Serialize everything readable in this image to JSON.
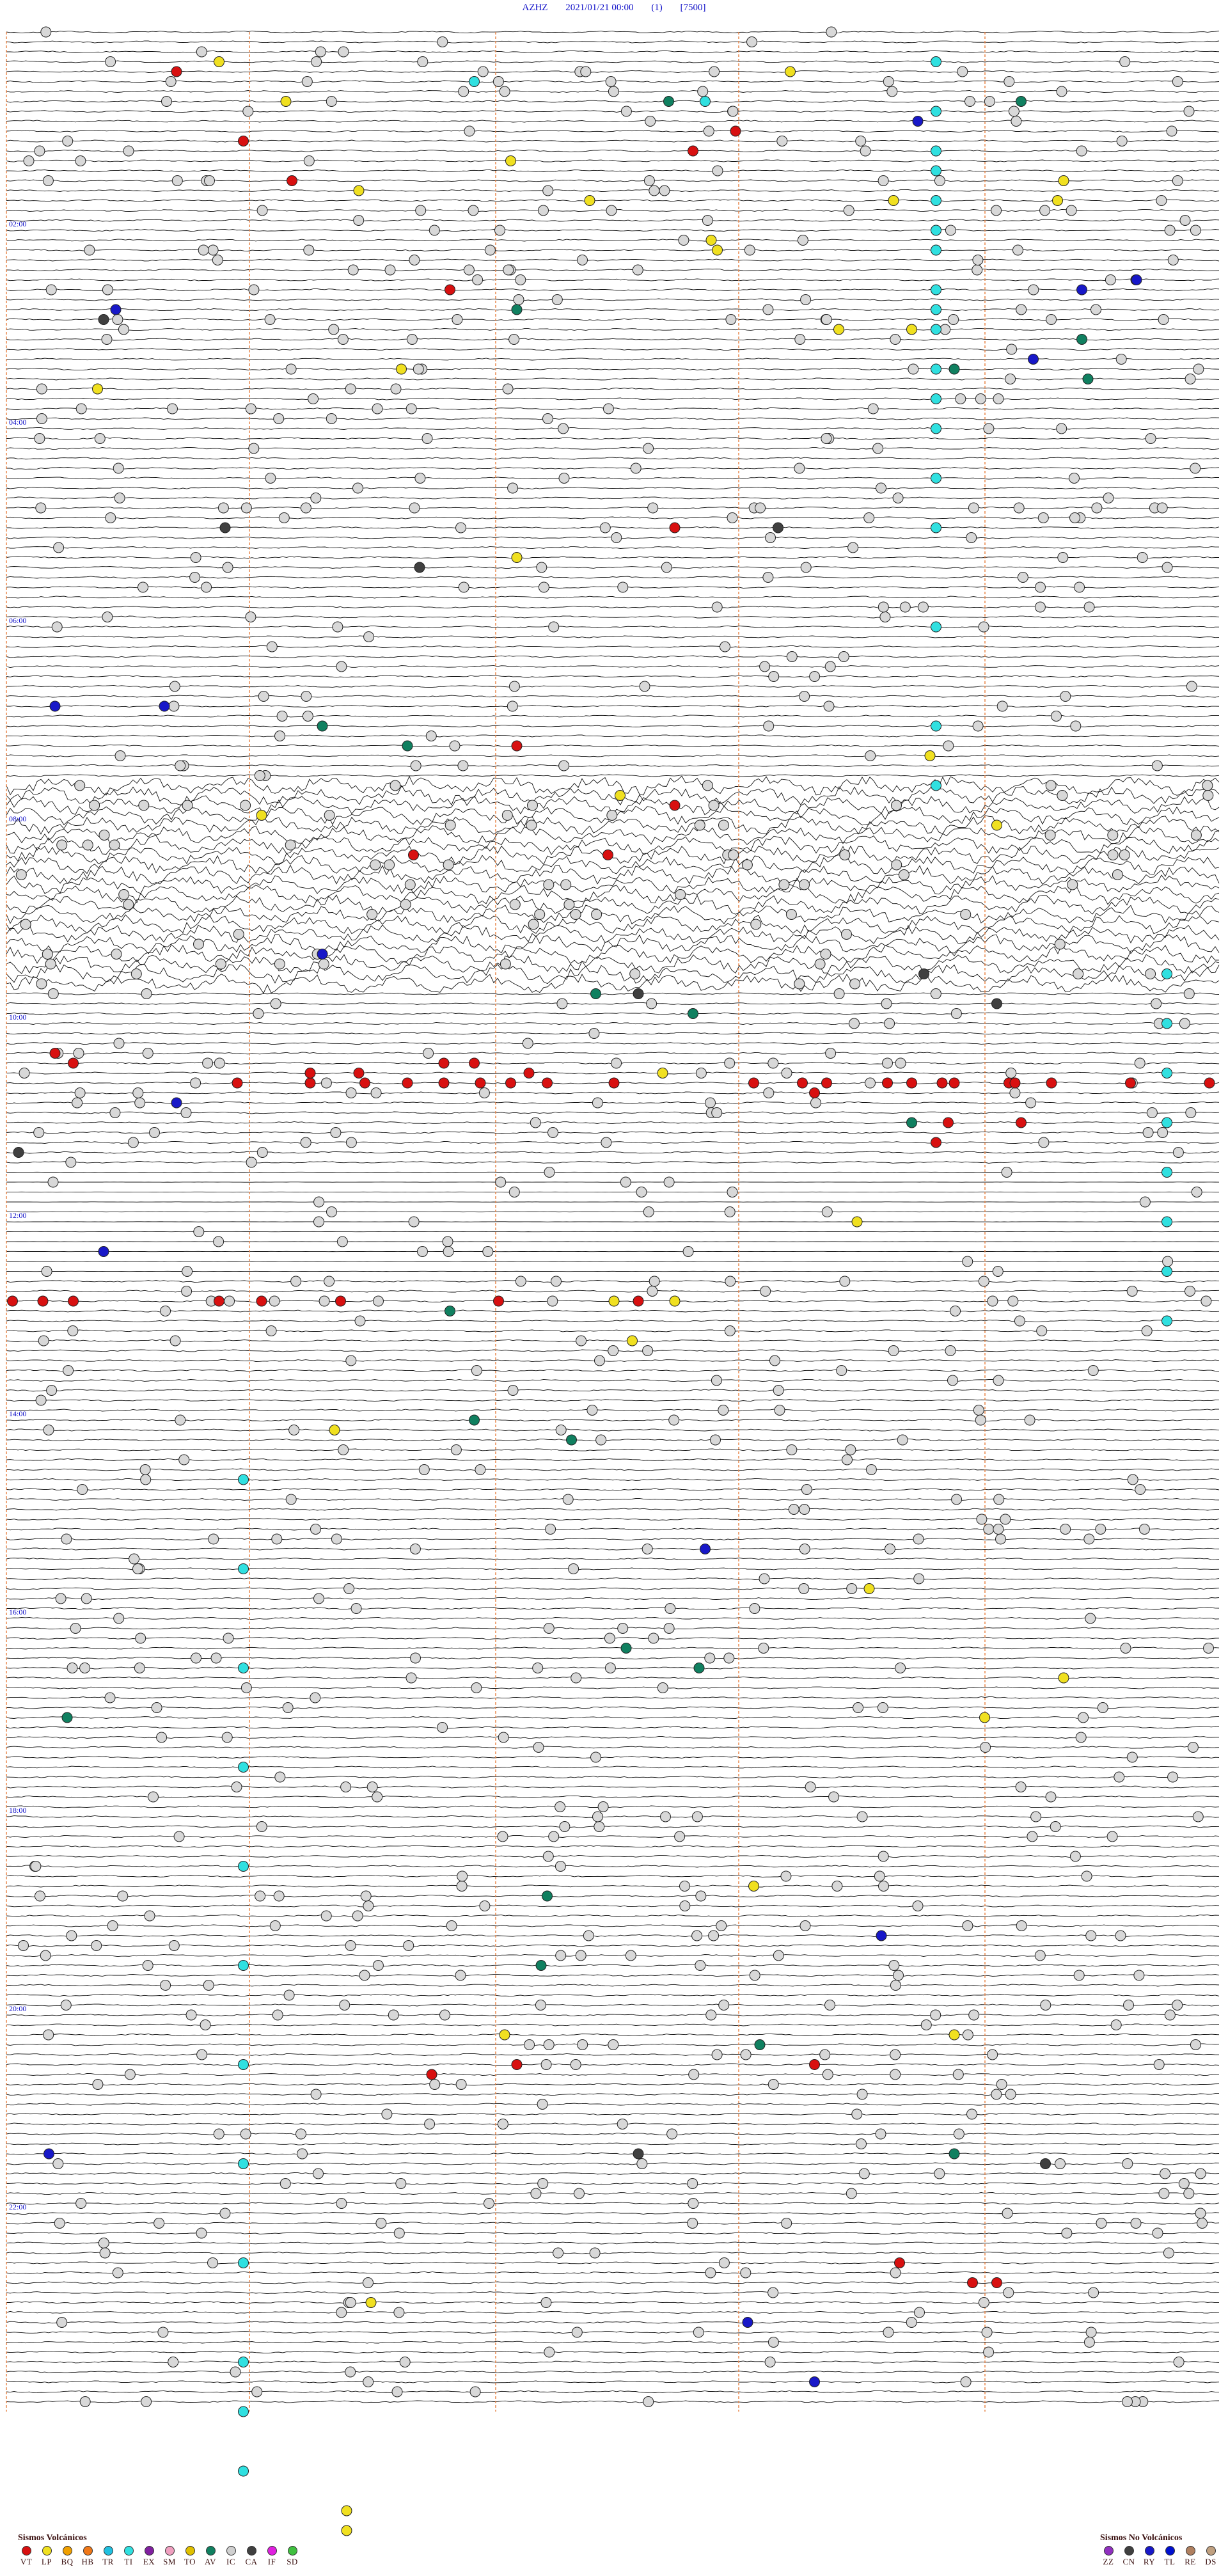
{
  "header": {
    "station": "AZHZ",
    "datetime": "2021/01/21 00:00",
    "channel": "(1)",
    "gain": "[7500]"
  },
  "hour_labels": [
    "02:00",
    "04:00",
    "06:00",
    "08:00",
    "10:00",
    "12:00",
    "14:00",
    "16:00",
    "18:00",
    "20:00",
    "22:00"
  ],
  "legend_volcanic": {
    "title": "Sismos Volcánicos",
    "items": [
      {
        "code": "VT",
        "color": "#d81010"
      },
      {
        "code": "LP",
        "color": "#f0e020"
      },
      {
        "code": "BQ",
        "color": "#f0a000"
      },
      {
        "code": "HB",
        "color": "#f07818"
      },
      {
        "code": "TR",
        "color": "#20c0e0"
      },
      {
        "code": "TI",
        "color": "#30e0e0"
      },
      {
        "code": "EX",
        "color": "#8020a0"
      },
      {
        "code": "SM",
        "color": "#f0a0c0"
      },
      {
        "code": "TO",
        "color": "#e0c000"
      },
      {
        "code": "AV",
        "color": "#108060"
      },
      {
        "code": "IC",
        "color": "#d0d0d0"
      },
      {
        "code": "CA",
        "color": "#404040"
      },
      {
        "code": "IF",
        "color": "#e020e0"
      },
      {
        "code": "SD",
        "color": "#40c040"
      }
    ]
  },
  "legend_nonvolcanic": {
    "title": "Sismos No Volcánicos",
    "items": [
      {
        "code": "ZZ",
        "color": "#9030c0"
      },
      {
        "code": "CN",
        "color": "#404040"
      },
      {
        "code": "RY",
        "color": "#1818c8"
      },
      {
        "code": "TL",
        "color": "#0010d0"
      },
      {
        "code": "RE",
        "color": "#b08060"
      },
      {
        "code": "DS",
        "color": "#c0a080"
      }
    ]
  },
  "chart_data": {
    "type": "scatter",
    "description_of_axes": "helicorder: each trace row spans a time window; x = minutes within row, y = row index",
    "rows": 120,
    "x_range_minutes": [
      0,
      12
    ],
    "series": [
      {
        "name": "VT",
        "color": "#d81010",
        "points": [
          [
            2.8,
            4
          ],
          [
            3.9,
            11
          ],
          [
            4.7,
            15
          ],
          [
            7.3,
            26
          ],
          [
            11.3,
            12
          ],
          [
            11.0,
            50
          ],
          [
            12.0,
            10
          ],
          [
            8.4,
            72
          ],
          [
            11.0,
            78
          ],
          [
            6.7,
            83
          ],
          [
            0.8,
            103
          ],
          [
            1.1,
            104
          ],
          [
            3.8,
            106
          ],
          [
            5.0,
            106
          ],
          [
            5.9,
            106
          ],
          [
            6.6,
            106
          ],
          [
            7.2,
            106
          ],
          [
            7.8,
            106
          ],
          [
            8.3,
            106
          ],
          [
            8.9,
            106
          ],
          [
            10.0,
            106
          ],
          [
            12.3,
            106
          ],
          [
            13.5,
            106
          ],
          [
            14.5,
            106
          ],
          [
            15.4,
            106
          ],
          [
            16.5,
            106
          ],
          [
            17.2,
            106
          ],
          [
            18.5,
            106
          ],
          [
            19.8,
            106
          ],
          [
            5.0,
            105
          ],
          [
            5.8,
            105
          ],
          [
            7.2,
            104
          ],
          [
            7.7,
            104
          ],
          [
            8.6,
            105
          ],
          [
            13.1,
            106
          ],
          [
            13.3,
            107
          ],
          [
            14.9,
            106
          ],
          [
            15.6,
            106
          ],
          [
            16.6,
            106
          ],
          [
            0.1,
            128
          ],
          [
            0.6,
            128
          ],
          [
            1.1,
            128
          ],
          [
            3.5,
            128
          ],
          [
            4.2,
            128
          ],
          [
            5.5,
            128
          ],
          [
            8.1,
            128
          ],
          [
            10.4,
            128
          ],
          [
            7.0,
            206
          ],
          [
            8.4,
            205
          ],
          [
            13.3,
            205
          ],
          [
            14.7,
            225
          ],
          [
            15.9,
            227
          ],
          [
            16.3,
            227
          ],
          [
            15.5,
            110
          ],
          [
            16.7,
            110
          ],
          [
            9.9,
            83
          ],
          [
            15.3,
            112
          ]
        ]
      },
      {
        "name": "LP",
        "color": "#f0e020",
        "points": [
          [
            3.5,
            3
          ],
          [
            4.6,
            7
          ],
          [
            8.3,
            13
          ],
          [
            9.6,
            17
          ],
          [
            5.8,
            16
          ],
          [
            14.6,
            17
          ],
          [
            12.9,
            4
          ],
          [
            11.7,
            22
          ],
          [
            13.7,
            30
          ],
          [
            14.9,
            30
          ],
          [
            6.5,
            34
          ],
          [
            1.5,
            36
          ],
          [
            8.4,
            53
          ],
          [
            11.6,
            21
          ],
          [
            4.2,
            79
          ],
          [
            10.1,
            77
          ],
          [
            15.2,
            73
          ],
          [
            10.8,
            105
          ],
          [
            14.0,
            120
          ],
          [
            10.0,
            128
          ],
          [
            11.0,
            128
          ],
          [
            10.3,
            132
          ],
          [
            5.4,
            141
          ],
          [
            14.2,
            157
          ],
          [
            6.0,
            229
          ],
          [
            8.2,
            202
          ],
          [
            12.3,
            187
          ],
          [
            16.1,
            170
          ],
          [
            17.3,
            17
          ],
          [
            17.4,
            15
          ],
          [
            16.3,
            80
          ],
          [
            5.6,
            250
          ],
          [
            5.6,
            252
          ],
          [
            15.6,
            202
          ],
          [
            17.4,
            166
          ]
        ]
      },
      {
        "name": "TI",
        "color": "#30e0e0",
        "points": [
          [
            15.3,
            3
          ],
          [
            7.7,
            5
          ],
          [
            11.5,
            7
          ],
          [
            15.3,
            8
          ],
          [
            15.3,
            12
          ],
          [
            15.3,
            14
          ],
          [
            15.3,
            17
          ],
          [
            15.3,
            20
          ],
          [
            15.3,
            22
          ],
          [
            15.3,
            26
          ],
          [
            15.3,
            28
          ],
          [
            15.3,
            30
          ],
          [
            15.3,
            34
          ],
          [
            15.3,
            37
          ],
          [
            15.3,
            40
          ],
          [
            15.3,
            45
          ],
          [
            15.3,
            50
          ],
          [
            15.3,
            60
          ],
          [
            15.3,
            70
          ],
          [
            15.3,
            76
          ],
          [
            3.9,
            146
          ],
          [
            3.9,
            155
          ],
          [
            3.9,
            165
          ],
          [
            3.9,
            175
          ],
          [
            3.9,
            185
          ],
          [
            3.9,
            195
          ],
          [
            3.9,
            205
          ],
          [
            3.9,
            215
          ],
          [
            3.9,
            225
          ],
          [
            3.9,
            235
          ],
          [
            3.9,
            240
          ],
          [
            3.9,
            246
          ],
          [
            19.1,
            95
          ],
          [
            19.1,
            100
          ],
          [
            19.1,
            105
          ],
          [
            19.1,
            110
          ],
          [
            19.1,
            115
          ],
          [
            19.1,
            120
          ],
          [
            19.1,
            125
          ],
          [
            19.1,
            130
          ]
        ]
      },
      {
        "name": "AV",
        "color": "#108060",
        "points": [
          [
            10.9,
            7
          ],
          [
            16.7,
            7
          ],
          [
            8.4,
            28
          ],
          [
            17.7,
            31
          ],
          [
            15.6,
            34
          ],
          [
            17.8,
            35
          ],
          [
            5.2,
            70
          ],
          [
            6.6,
            72
          ],
          [
            9.7,
            97
          ],
          [
            11.3,
            99
          ],
          [
            14.9,
            110
          ],
          [
            7.3,
            129
          ],
          [
            7.7,
            140
          ],
          [
            9.3,
            142
          ],
          [
            10.2,
            163
          ],
          [
            11.4,
            165
          ],
          [
            1.0,
            170
          ],
          [
            8.9,
            188
          ],
          [
            8.8,
            195
          ],
          [
            12.4,
            203
          ],
          [
            15.6,
            214
          ]
        ]
      },
      {
        "name": "RY",
        "color": "#1818c8",
        "points": [
          [
            1.8,
            28
          ],
          [
            0.8,
            68
          ],
          [
            2.6,
            68
          ],
          [
            5.2,
            93
          ],
          [
            15.0,
            9
          ],
          [
            17.7,
            26
          ],
          [
            18.6,
            25
          ],
          [
            16.9,
            33
          ],
          [
            11.5,
            153
          ],
          [
            14.4,
            192
          ],
          [
            12.2,
            231
          ],
          [
            13.3,
            237
          ],
          [
            0.7,
            214
          ],
          [
            2.8,
            108
          ],
          [
            1.6,
            123
          ]
        ]
      },
      {
        "name": "CA",
        "color": "#404040",
        "points": [
          [
            1.6,
            29
          ],
          [
            3.6,
            50
          ],
          [
            6.8,
            54
          ],
          [
            12.7,
            50
          ],
          [
            10.4,
            97
          ],
          [
            15.1,
            95
          ],
          [
            10.4,
            214
          ],
          [
            17.1,
            215
          ],
          [
            16.3,
            98
          ],
          [
            0.2,
            113
          ]
        ]
      },
      {
        "name": "IC",
        "color": "#d0d0d0",
        "points": []
      }
    ]
  }
}
